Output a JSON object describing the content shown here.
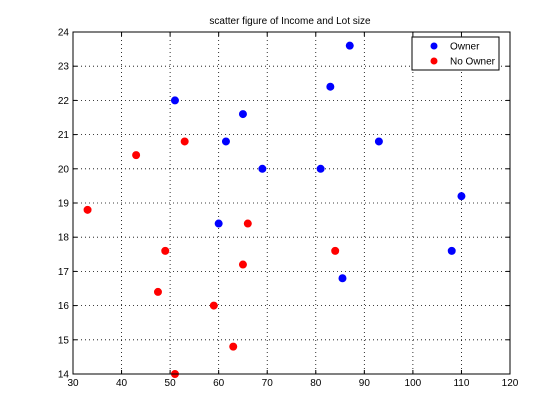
{
  "chart_data": {
    "type": "scatter",
    "title": "scatter figure of Income and Lot size",
    "xlabel": "",
    "ylabel": "",
    "xlim": [
      30,
      120
    ],
    "ylim": [
      14,
      24
    ],
    "xticks": [
      30,
      40,
      50,
      60,
      70,
      80,
      90,
      100,
      110,
      120
    ],
    "yticks": [
      14,
      15,
      16,
      17,
      18,
      19,
      20,
      21,
      22,
      23,
      24
    ],
    "grid": true,
    "legend_position": "top-right",
    "series": [
      {
        "name": "Owner",
        "color": "#0000ff",
        "points": [
          {
            "x": 87,
            "y": 23.6
          },
          {
            "x": 83,
            "y": 22.4
          },
          {
            "x": 51,
            "y": 22.0
          },
          {
            "x": 65,
            "y": 21.6
          },
          {
            "x": 61.5,
            "y": 20.8
          },
          {
            "x": 93,
            "y": 20.8
          },
          {
            "x": 69,
            "y": 20.0
          },
          {
            "x": 81,
            "y": 20.0
          },
          {
            "x": 110,
            "y": 19.2
          },
          {
            "x": 60,
            "y": 18.4
          },
          {
            "x": 108,
            "y": 17.6
          },
          {
            "x": 85.5,
            "y": 16.8
          }
        ]
      },
      {
        "name": "No Owner",
        "color": "#ff0000",
        "points": [
          {
            "x": 53,
            "y": 20.8
          },
          {
            "x": 43,
            "y": 20.4
          },
          {
            "x": 33,
            "y": 18.8
          },
          {
            "x": 66,
            "y": 18.4
          },
          {
            "x": 49,
            "y": 17.6
          },
          {
            "x": 84,
            "y": 17.6
          },
          {
            "x": 65,
            "y": 17.2
          },
          {
            "x": 47.5,
            "y": 16.4
          },
          {
            "x": 59,
            "y": 16.0
          },
          {
            "x": 63,
            "y": 14.8
          },
          {
            "x": 51,
            "y": 14.0
          }
        ]
      }
    ]
  }
}
